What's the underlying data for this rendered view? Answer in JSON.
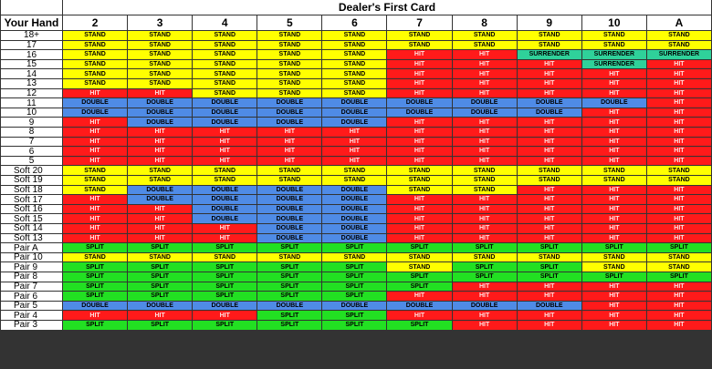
{
  "table": {
    "title": "Dealer's First Card",
    "row_header": "Your Hand",
    "columns": [
      "2",
      "3",
      "4",
      "5",
      "6",
      "7",
      "8",
      "9",
      "10",
      "A"
    ],
    "colors": {
      "STAND": "#ffff00",
      "HIT": "#ff1a1a",
      "DOUBLE": "#4f8be6",
      "SPLIT": "#22e022",
      "SURRENDER": "#2fd19a"
    },
    "text_colors": {
      "STAND": "#000000",
      "HIT": "#ffe0e0",
      "DOUBLE": "#000000",
      "SPLIT": "#000000",
      "SURRENDER": "#000000"
    },
    "rows": [
      {
        "hand": "18+",
        "actions": [
          "STAND",
          "STAND",
          "STAND",
          "STAND",
          "STAND",
          "STAND",
          "STAND",
          "STAND",
          "STAND",
          "STAND"
        ]
      },
      {
        "hand": "17",
        "actions": [
          "STAND",
          "STAND",
          "STAND",
          "STAND",
          "STAND",
          "STAND",
          "STAND",
          "STAND",
          "STAND",
          "STAND"
        ]
      },
      {
        "hand": "16",
        "actions": [
          "STAND",
          "STAND",
          "STAND",
          "STAND",
          "STAND",
          "HIT",
          "HIT",
          "SURRENDER",
          "SURRENDER",
          "SURRENDER"
        ]
      },
      {
        "hand": "15",
        "actions": [
          "STAND",
          "STAND",
          "STAND",
          "STAND",
          "STAND",
          "HIT",
          "HIT",
          "HIT",
          "SURRENDER",
          "HIT"
        ]
      },
      {
        "hand": "14",
        "actions": [
          "STAND",
          "STAND",
          "STAND",
          "STAND",
          "STAND",
          "HIT",
          "HIT",
          "HIT",
          "HIT",
          "HIT"
        ]
      },
      {
        "hand": "13",
        "actions": [
          "STAND",
          "STAND",
          "STAND",
          "STAND",
          "STAND",
          "HIT",
          "HIT",
          "HIT",
          "HIT",
          "HIT"
        ]
      },
      {
        "hand": "12",
        "actions": [
          "HIT",
          "HIT",
          "STAND",
          "STAND",
          "STAND",
          "HIT",
          "HIT",
          "HIT",
          "HIT",
          "HIT"
        ]
      },
      {
        "hand": "11",
        "actions": [
          "DOUBLE",
          "DOUBLE",
          "DOUBLE",
          "DOUBLE",
          "DOUBLE",
          "DOUBLE",
          "DOUBLE",
          "DOUBLE",
          "DOUBLE",
          "HIT"
        ]
      },
      {
        "hand": "10",
        "actions": [
          "DOUBLE",
          "DOUBLE",
          "DOUBLE",
          "DOUBLE",
          "DOUBLE",
          "DOUBLE",
          "DOUBLE",
          "DOUBLE",
          "HIT",
          "HIT"
        ]
      },
      {
        "hand": "9",
        "actions": [
          "HIT",
          "DOUBLE",
          "DOUBLE",
          "DOUBLE",
          "DOUBLE",
          "HIT",
          "HIT",
          "HIT",
          "HIT",
          "HIT"
        ]
      },
      {
        "hand": "8",
        "actions": [
          "HIT",
          "HIT",
          "HIT",
          "HIT",
          "HIT",
          "HIT",
          "HIT",
          "HIT",
          "HIT",
          "HIT"
        ]
      },
      {
        "hand": "7",
        "actions": [
          "HIT",
          "HIT",
          "HIT",
          "HIT",
          "HIT",
          "HIT",
          "HIT",
          "HIT",
          "HIT",
          "HIT"
        ]
      },
      {
        "hand": "6",
        "actions": [
          "HIT",
          "HIT",
          "HIT",
          "HIT",
          "HIT",
          "HIT",
          "HIT",
          "HIT",
          "HIT",
          "HIT"
        ]
      },
      {
        "hand": "5",
        "actions": [
          "HIT",
          "HIT",
          "HIT",
          "HIT",
          "HIT",
          "HIT",
          "HIT",
          "HIT",
          "HIT",
          "HIT"
        ]
      },
      {
        "hand": "Soft 20",
        "actions": [
          "STAND",
          "STAND",
          "STAND",
          "STAND",
          "STAND",
          "STAND",
          "STAND",
          "STAND",
          "STAND",
          "STAND"
        ]
      },
      {
        "hand": "Soft 19",
        "actions": [
          "STAND",
          "STAND",
          "STAND",
          "STAND",
          "STAND",
          "STAND",
          "STAND",
          "STAND",
          "STAND",
          "STAND"
        ]
      },
      {
        "hand": "Soft 18",
        "actions": [
          "STAND",
          "DOUBLE",
          "DOUBLE",
          "DOUBLE",
          "DOUBLE",
          "STAND",
          "STAND",
          "HIT",
          "HIT",
          "HIT"
        ]
      },
      {
        "hand": "Soft 17",
        "actions": [
          "HIT",
          "DOUBLE",
          "DOUBLE",
          "DOUBLE",
          "DOUBLE",
          "HIT",
          "HIT",
          "HIT",
          "HIT",
          "HIT"
        ]
      },
      {
        "hand": "Soft 16",
        "actions": [
          "HIT",
          "HIT",
          "DOUBLE",
          "DOUBLE",
          "DOUBLE",
          "HIT",
          "HIT",
          "HIT",
          "HIT",
          "HIT"
        ]
      },
      {
        "hand": "Soft 15",
        "actions": [
          "HIT",
          "HIT",
          "DOUBLE",
          "DOUBLE",
          "DOUBLE",
          "HIT",
          "HIT",
          "HIT",
          "HIT",
          "HIT"
        ]
      },
      {
        "hand": "Soft 14",
        "actions": [
          "HIT",
          "HIT",
          "HIT",
          "DOUBLE",
          "DOUBLE",
          "HIT",
          "HIT",
          "HIT",
          "HIT",
          "HIT"
        ]
      },
      {
        "hand": "Soft 13",
        "actions": [
          "HIT",
          "HIT",
          "HIT",
          "DOUBLE",
          "DOUBLE",
          "HIT",
          "HIT",
          "HIT",
          "HIT",
          "HIT"
        ]
      },
      {
        "hand": "Pair A",
        "actions": [
          "SPLIT",
          "SPLIT",
          "SPLIT",
          "SPLIT",
          "SPLIT",
          "SPLIT",
          "SPLIT",
          "SPLIT",
          "SPLIT",
          "SPLIT"
        ]
      },
      {
        "hand": "Pair 10",
        "actions": [
          "STAND",
          "STAND",
          "STAND",
          "STAND",
          "STAND",
          "STAND",
          "STAND",
          "STAND",
          "STAND",
          "STAND"
        ]
      },
      {
        "hand": "Pair 9",
        "actions": [
          "SPLIT",
          "SPLIT",
          "SPLIT",
          "SPLIT",
          "SPLIT",
          "STAND",
          "SPLIT",
          "SPLIT",
          "STAND",
          "STAND"
        ]
      },
      {
        "hand": "Pair 8",
        "actions": [
          "SPLIT",
          "SPLIT",
          "SPLIT",
          "SPLIT",
          "SPLIT",
          "SPLIT",
          "SPLIT",
          "SPLIT",
          "SPLIT",
          "SPLIT"
        ]
      },
      {
        "hand": "Pair 7",
        "actions": [
          "SPLIT",
          "SPLIT",
          "SPLIT",
          "SPLIT",
          "SPLIT",
          "SPLIT",
          "HIT",
          "HIT",
          "HIT",
          "HIT"
        ]
      },
      {
        "hand": "Pair 6",
        "actions": [
          "SPLIT",
          "SPLIT",
          "SPLIT",
          "SPLIT",
          "SPLIT",
          "HIT",
          "HIT",
          "HIT",
          "HIT",
          "HIT"
        ]
      },
      {
        "hand": "Pair 5",
        "actions": [
          "DOUBLE",
          "DOUBLE",
          "DOUBLE",
          "DOUBLE",
          "DOUBLE",
          "DOUBLE",
          "DOUBLE",
          "DOUBLE",
          "HIT",
          "HIT"
        ]
      },
      {
        "hand": "Pair 4",
        "actions": [
          "HIT",
          "HIT",
          "HIT",
          "SPLIT",
          "SPLIT",
          "HIT",
          "HIT",
          "HIT",
          "HIT",
          "HIT"
        ]
      },
      {
        "hand": "Pair 3",
        "actions": [
          "SPLIT",
          "SPLIT",
          "SPLIT",
          "SPLIT",
          "SPLIT",
          "SPLIT",
          "HIT",
          "HIT",
          "HIT",
          "HIT"
        ]
      }
    ]
  }
}
